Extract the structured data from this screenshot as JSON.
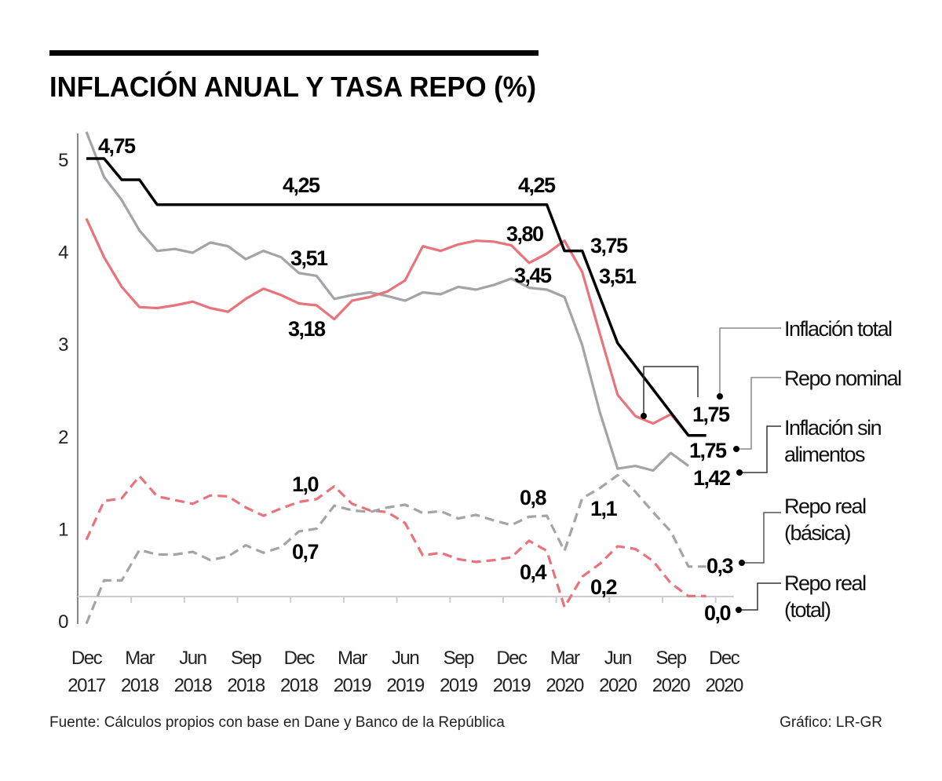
{
  "chart_data": {
    "type": "line",
    "title": "INFLACIÓN ANUAL Y TASA REPO (%)",
    "xlabel": "",
    "ylabel": "",
    "ylim": [
      0,
      5
    ],
    "yticks": [
      "0",
      "1",
      "2",
      "3",
      "4",
      "5"
    ],
    "x_start": "Dec 2017",
    "x_tick_labels": [
      {
        "month": "Dec",
        "year": "2017"
      },
      {
        "month": "Mar",
        "year": "2018"
      },
      {
        "month": "Jun",
        "year": "2018"
      },
      {
        "month": "Sep",
        "year": "2018"
      },
      {
        "month": "Dec",
        "year": "2018"
      },
      {
        "month": "Mar",
        "year": "2019"
      },
      {
        "month": "Jun",
        "year": "2019"
      },
      {
        "month": "Sep",
        "year": "2019"
      },
      {
        "month": "Dec",
        "year": "2019"
      },
      {
        "month": "Mar",
        "year": "2020"
      },
      {
        "month": "Jun",
        "year": "2020"
      },
      {
        "month": "Sep",
        "year": "2020"
      },
      {
        "month": "Dec",
        "year": "2020"
      }
    ],
    "series": [
      {
        "name": "Inflación total",
        "color": "#e8737b",
        "style": "solid",
        "values": [
          4.35,
          3.93,
          3.61,
          3.39,
          3.38,
          3.41,
          3.45,
          3.38,
          3.34,
          3.48,
          3.59,
          3.52,
          3.43,
          3.41,
          3.26,
          3.46,
          3.5,
          3.56,
          3.68,
          4.05,
          4.0,
          4.07,
          4.11,
          4.1,
          4.06,
          3.87,
          3.97,
          4.11,
          3.77,
          3.1,
          2.44,
          2.21,
          2.13,
          2.23,
          2.0
        ]
      },
      {
        "name": "Repo nominal",
        "color": "#000000",
        "style": "solid",
        "values": [
          5.0,
          5.0,
          4.77,
          4.77,
          4.5,
          4.5,
          4.5,
          4.5,
          4.5,
          4.5,
          4.5,
          4.5,
          4.5,
          4.5,
          4.5,
          4.5,
          4.5,
          4.5,
          4.5,
          4.5,
          4.5,
          4.5,
          4.5,
          4.5,
          4.5,
          4.5,
          4.5,
          4.0,
          4.0,
          3.5,
          3.0,
          2.75,
          2.5,
          2.25,
          2.0,
          2.0
        ]
      },
      {
        "name": "Inflación sin alimentos",
        "color": "#a3a3a8",
        "style": "solid",
        "values": [
          5.29,
          4.8,
          4.55,
          4.22,
          4.0,
          4.02,
          3.98,
          4.09,
          4.05,
          3.91,
          4.0,
          3.93,
          3.76,
          3.73,
          3.48,
          3.52,
          3.55,
          3.51,
          3.46,
          3.55,
          3.53,
          3.61,
          3.58,
          3.63,
          3.7,
          3.6,
          3.58,
          3.5,
          2.98,
          2.25,
          1.64,
          1.67,
          1.62,
          1.81,
          1.67
        ]
      },
      {
        "name": "Repo real (básica)",
        "color": "#a3a3a8",
        "style": "dashed",
        "values": [
          -0.04,
          0.43,
          0.43,
          0.76,
          0.71,
          0.71,
          0.74,
          0.65,
          0.69,
          0.81,
          0.73,
          0.79,
          0.96,
          0.99,
          1.24,
          1.19,
          1.17,
          1.22,
          1.25,
          1.16,
          1.18,
          1.1,
          1.14,
          1.08,
          1.03,
          1.12,
          1.13,
          0.75,
          1.32,
          1.43,
          1.57,
          1.39,
          1.17,
          0.96,
          0.58,
          0.58
        ]
      },
      {
        "name": "Repo real (total)",
        "color": "#e8737b",
        "style": "dashed",
        "values": [
          0.87,
          1.29,
          1.32,
          1.56,
          1.34,
          1.3,
          1.26,
          1.35,
          1.34,
          1.22,
          1.13,
          1.21,
          1.28,
          1.31,
          1.45,
          1.26,
          1.19,
          1.17,
          1.05,
          0.7,
          0.73,
          0.66,
          0.63,
          0.65,
          0.68,
          0.86,
          0.75,
          0.14,
          0.47,
          0.61,
          0.8,
          0.77,
          0.64,
          0.4,
          0.26,
          0.26
        ]
      }
    ],
    "annotations": [
      "4,75",
      "4,25",
      "4,25",
      "3,51",
      "3,18",
      "3,80",
      "3,45",
      "3,75",
      "3,51",
      "1,0",
      "0,7",
      "0,8",
      "1,1",
      "0,4",
      "0,2",
      "1,75",
      "1,75",
      "1,42",
      "0,3",
      "0,0"
    ],
    "legend": {
      "inflacion_total": "Inflación total",
      "repo_nominal": "Repo nominal",
      "sin_alimentos_1": "Inflación sin",
      "sin_alimentos_2": "alimentos",
      "real_basica_1": "Repo real",
      "real_basica_2": "(básica)",
      "real_total_1": "Repo real",
      "real_total_2": "(total)"
    },
    "legend_placement": "right"
  },
  "footer": {
    "source": "Fuente: Cálculos propios con base en Dane y Banco de la República",
    "credit": "Gráfico: LR-GR"
  }
}
